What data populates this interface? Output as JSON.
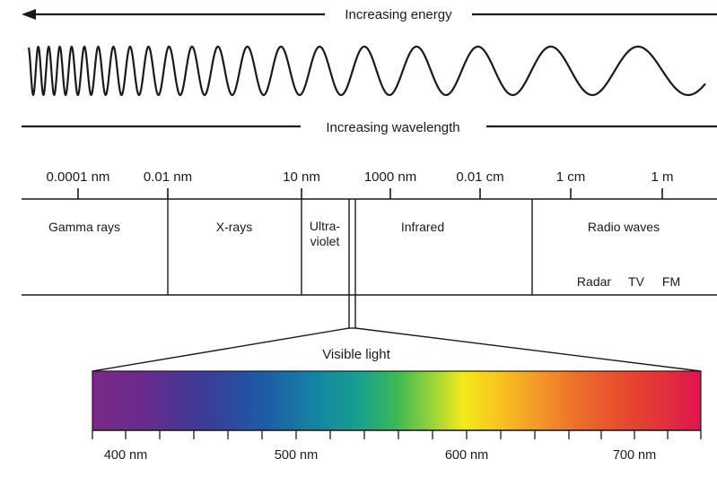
{
  "energy_arrow": {
    "label": "Increasing energy",
    "direction": "left"
  },
  "wavelength_line": {
    "label": "Increasing wavelength"
  },
  "wavelength_scale": {
    "ticks": [
      "0.0001 nm",
      "0.01 nm",
      "10 nm",
      "1000 nm",
      "0.01 cm",
      "1 cm",
      "1 m"
    ]
  },
  "bands": {
    "gamma": "Gamma rays",
    "xray": "X-rays",
    "uv_line1": "Ultra-",
    "uv_line2": "violet",
    "infrared": "Infrared",
    "radio": "Radio waves",
    "radio_sub": [
      "Radar",
      "TV",
      "FM"
    ]
  },
  "visible": {
    "label": "Visible light",
    "ticks": [
      "400 nm",
      "500 nm",
      "600 nm",
      "700 nm"
    ]
  },
  "colors": {
    "line": "#1a1a1a",
    "spectrum": [
      "#7a2a86",
      "#5b2c8e",
      "#2f3d96",
      "#1a5fa6",
      "#1685a0",
      "#1aa38a",
      "#4bbf4b",
      "#c8e02c",
      "#f6e61a",
      "#f7b51f",
      "#f0862a",
      "#e8572e",
      "#e23a3a",
      "#e0174e"
    ]
  }
}
